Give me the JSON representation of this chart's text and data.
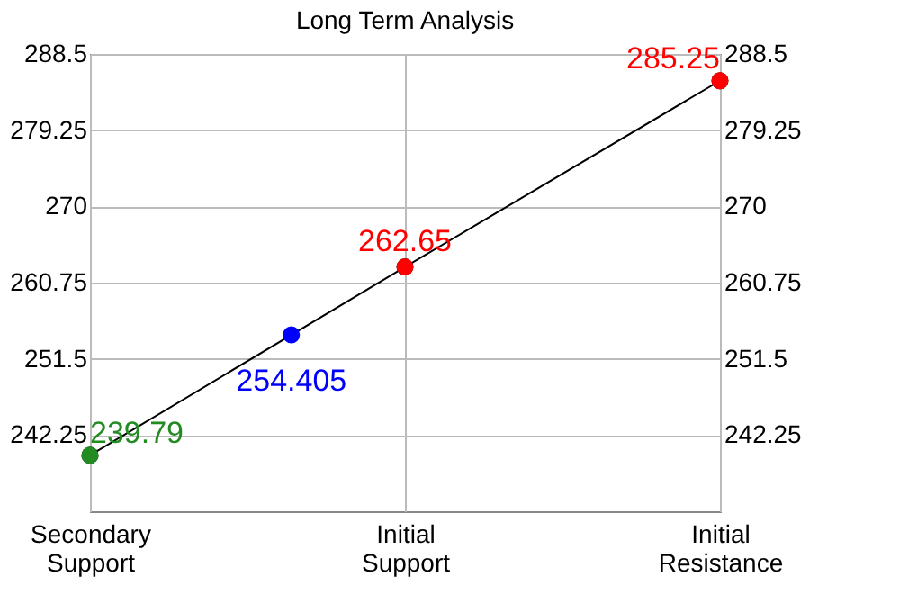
{
  "chart_data": {
    "type": "line",
    "title": "Long Term Analysis",
    "categories": [
      "Secondary\nSupport",
      "Initial\nSupport",
      "Initial\nResistance"
    ],
    "series": [
      {
        "color": "#000000",
        "colors": [
          "#228b22",
          "#ff0000",
          "#ff0000"
        ],
        "values": [
          239.79,
          262.65,
          285.25
        ]
      }
    ],
    "annotations": [
      {
        "text": "254.405",
        "y": 254.405
      }
    ],
    "ylim": [
      233,
      288.5
    ],
    "yticks": [
      242.25,
      251.5,
      260.75,
      270,
      279.25,
      288.5
    ],
    "y2lim": [
      233,
      288.5
    ],
    "y2ticks": [
      242.25,
      251.5,
      260.75,
      270,
      279.25,
      288.5
    ],
    "grid": true,
    "marker": "circle",
    "line_style": "solid",
    "data_labels": true,
    "legend": false
  }
}
